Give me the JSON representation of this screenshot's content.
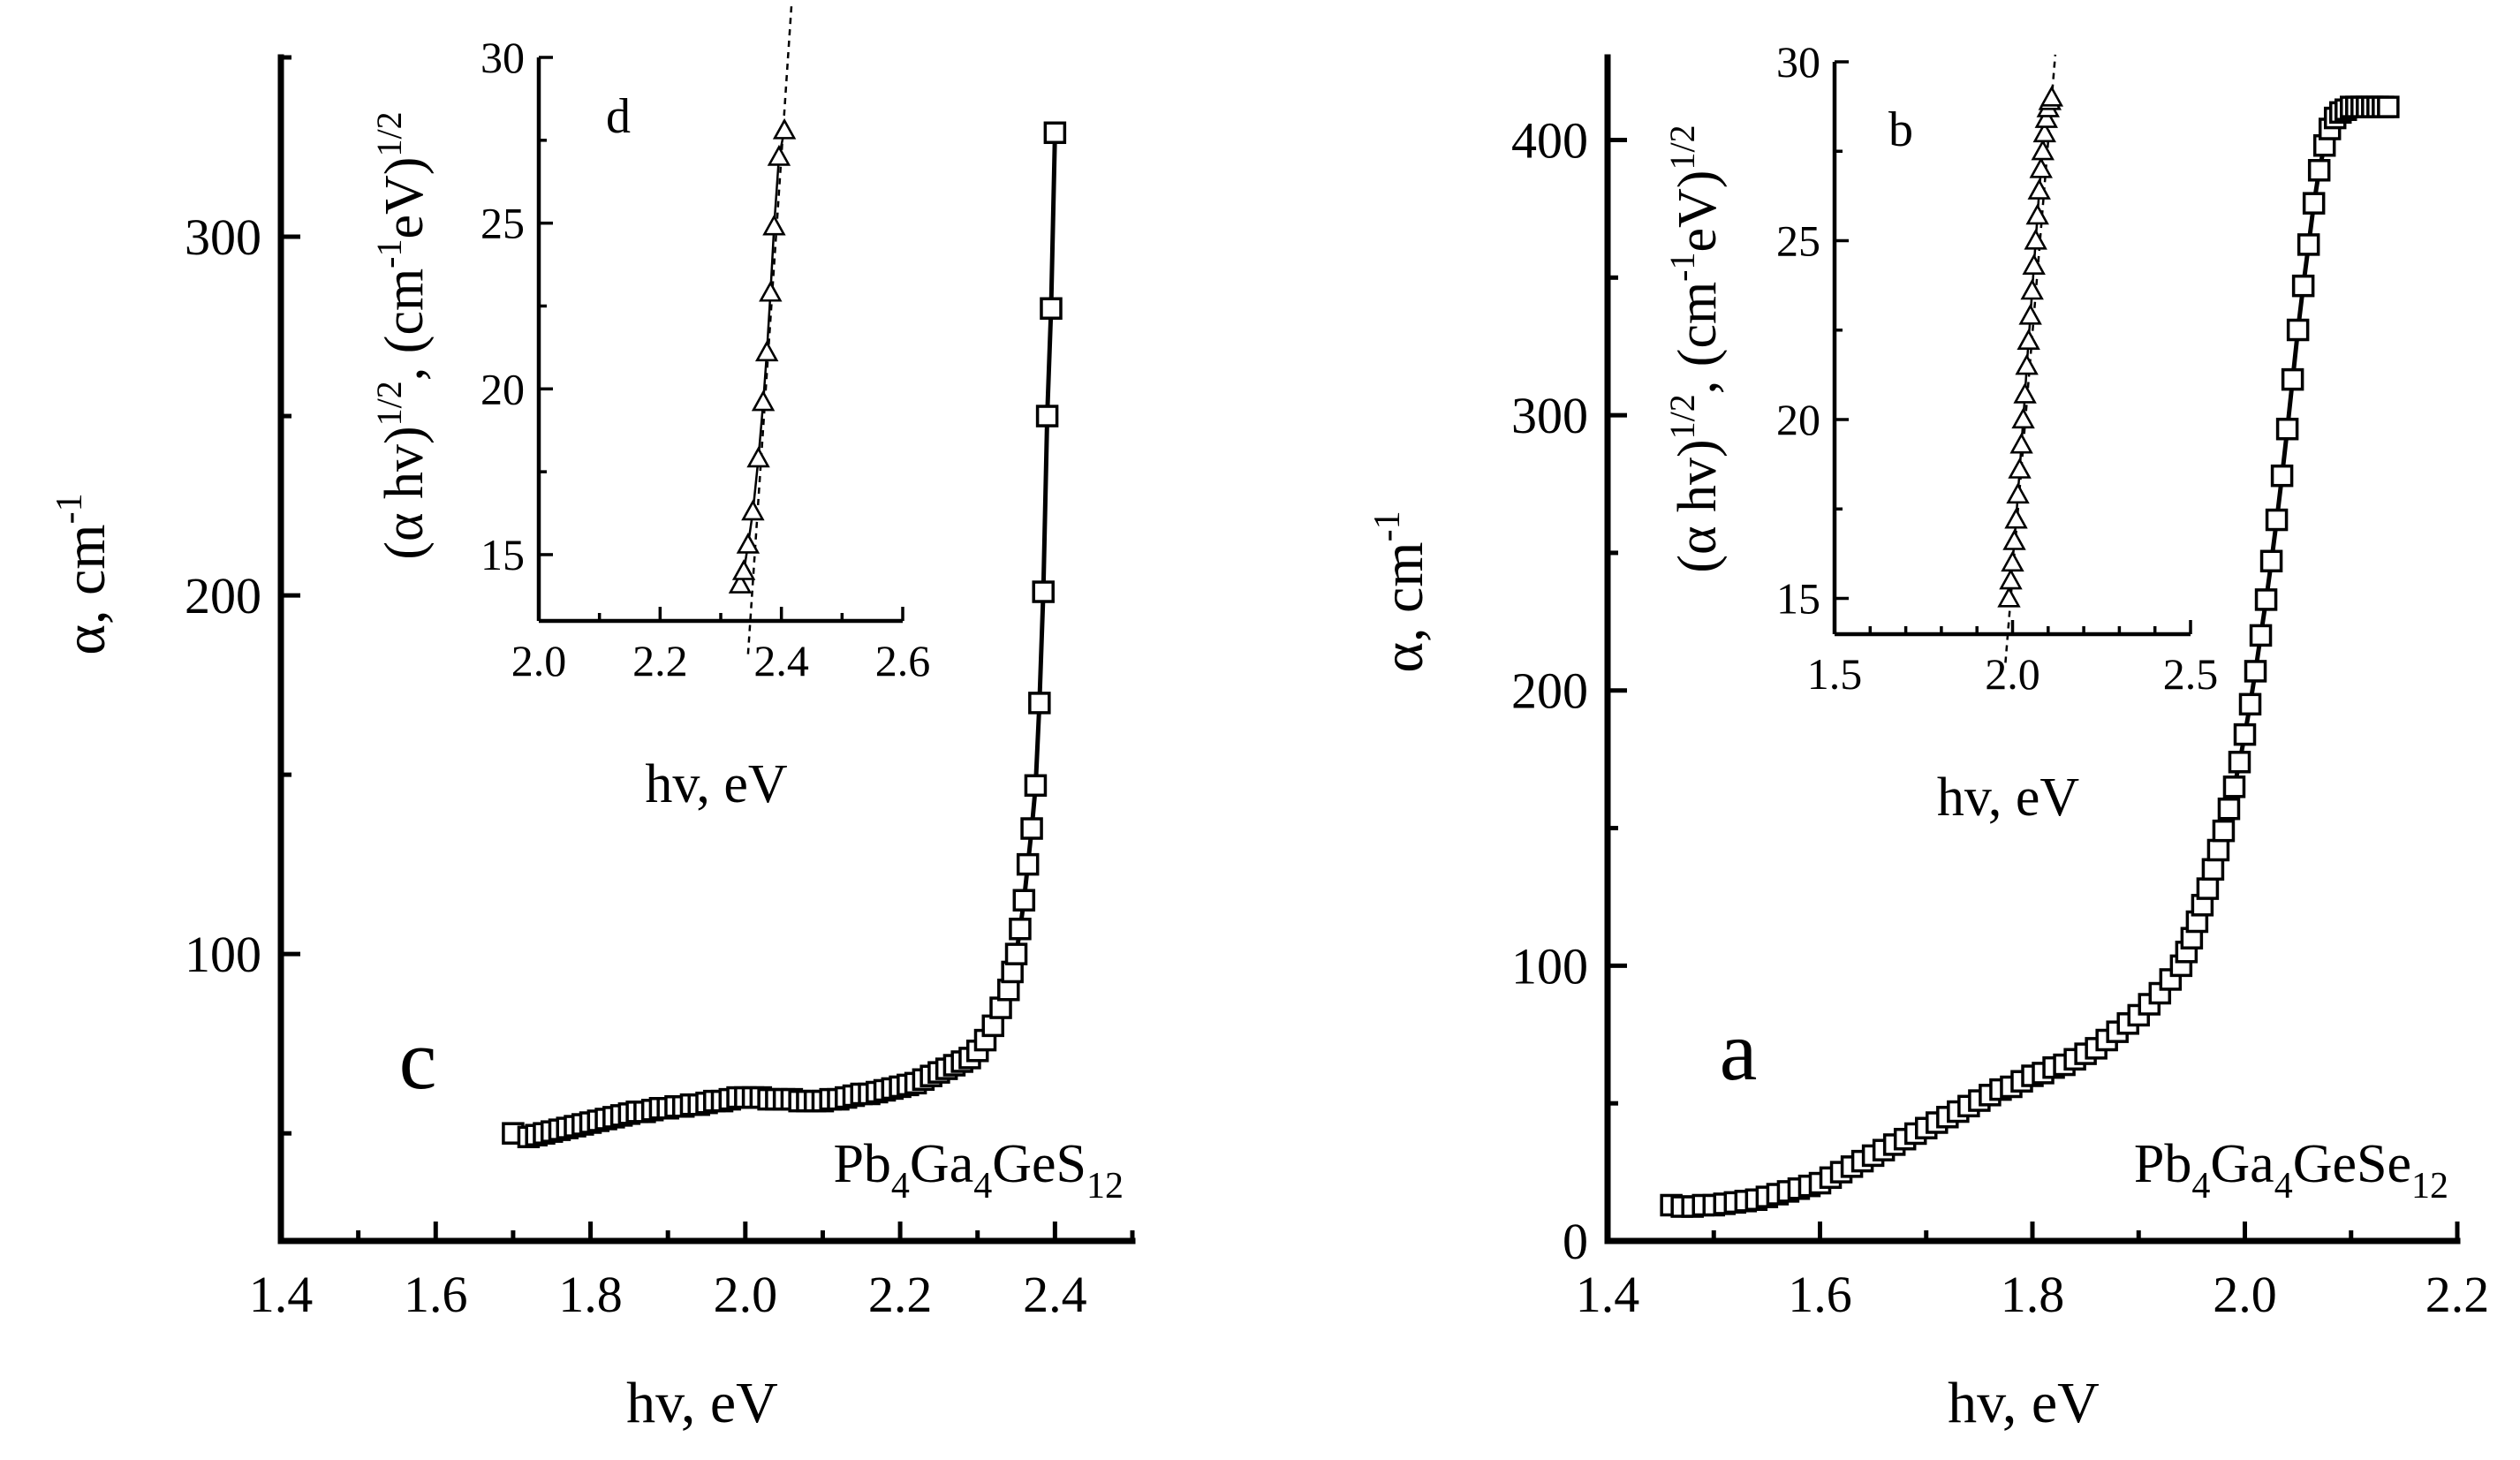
{
  "chart_data": [
    {
      "id": "c",
      "type": "scatter",
      "panel_letter": "c",
      "compound": {
        "base": "Pb",
        "parts": [
          [
            "Pb",
            "4"
          ],
          [
            "Ga",
            "4"
          ],
          [
            "GeS",
            "12"
          ]
        ]
      },
      "compound_text": "Pb4Ga4GeS12",
      "xlabel": "hv, eV",
      "ylabel": {
        "main": "α, cm",
        "sup": "-1"
      },
      "xlim": [
        1.4,
        2.5
      ],
      "ylim": [
        20,
        350
      ],
      "xticks": [
        1.4,
        1.6,
        1.8,
        2.0,
        2.2,
        2.4
      ],
      "xtick_labels": [
        "1.4",
        "1.6",
        "1.8",
        "2.0",
        "2.2",
        "2.4"
      ],
      "yticks": [
        100,
        200,
        300
      ],
      "ytick_labels": [
        "100",
        "200",
        "300"
      ],
      "marker": "square",
      "x": [
        1.7,
        1.72,
        1.73,
        1.74,
        1.75,
        1.76,
        1.77,
        1.78,
        1.79,
        1.8,
        1.81,
        1.82,
        1.83,
        1.84,
        1.85,
        1.86,
        1.87,
        1.88,
        1.89,
        1.9,
        1.91,
        1.92,
        1.93,
        1.94,
        1.95,
        1.96,
        1.97,
        1.98,
        1.99,
        2.0,
        2.01,
        2.02,
        2.03,
        2.04,
        2.05,
        2.06,
        2.07,
        2.08,
        2.09,
        2.1,
        2.11,
        2.12,
        2.13,
        2.14,
        2.15,
        2.16,
        2.17,
        2.18,
        2.19,
        2.2,
        2.21,
        2.22,
        2.23,
        2.24,
        2.25,
        2.26,
        2.27,
        2.28,
        2.29,
        2.3,
        2.31,
        2.32,
        2.33,
        2.34,
        2.345,
        2.35,
        2.355,
        2.36,
        2.365,
        2.37,
        2.375,
        2.38,
        2.385,
        2.39,
        2.395,
        2.4
      ],
      "y": [
        50,
        49,
        49.5,
        50,
        50.5,
        51,
        51.5,
        52,
        52.5,
        53,
        53.5,
        54,
        54.5,
        55,
        55.5,
        56,
        56,
        56.5,
        57,
        57,
        57.5,
        57.5,
        58,
        58,
        58.5,
        59,
        59,
        59.5,
        60,
        60,
        60,
        60,
        59.5,
        59.5,
        59.5,
        59.5,
        59,
        59,
        59,
        59,
        59.5,
        59.5,
        60,
        60.5,
        61,
        61,
        61.5,
        62,
        62.5,
        63,
        63.5,
        64,
        65,
        66,
        67,
        68,
        69,
        70,
        71,
        73,
        76,
        80,
        85,
        90,
        95,
        100,
        107,
        115,
        125,
        135,
        147,
        170,
        201,
        250,
        280,
        329
      ]
    },
    {
      "id": "d",
      "type": "scatter",
      "inset_of": "c",
      "panel_letter": "d",
      "xlabel": "hv, eV",
      "ylabel": {
        "open": "(α hv)",
        "sup1": "1/2",
        "mid": ", (cm",
        "sup2": "-1",
        "mid2": "eV)",
        "sup3": "1/2"
      },
      "ylabel_text": "(α hv)1/2, (cm-1eV)1/2",
      "xlim": [
        2.0,
        2.6
      ],
      "ylim": [
        13,
        30
      ],
      "xticks": [
        2.0,
        2.2,
        2.4,
        2.6
      ],
      "xtick_labels": [
        "2.0",
        "2.2",
        "2.4",
        "2.6"
      ],
      "yticks": [
        15,
        20,
        25,
        30
      ],
      "ytick_labels": [
        "15",
        "20",
        "25",
        "30"
      ],
      "marker": "triangle",
      "x": [
        2.332,
        2.338,
        2.345,
        2.353,
        2.362,
        2.37,
        2.376,
        2.382,
        2.388,
        2.396,
        2.405
      ],
      "y": [
        14.1,
        14.5,
        15.3,
        16.3,
        17.9,
        19.6,
        21.1,
        22.9,
        24.9,
        27.0,
        27.8
      ],
      "fit_line": {
        "x": [
          2.345,
          2.42
        ],
        "y": [
          12.0,
          32.5
        ]
      }
    },
    {
      "id": "a",
      "type": "scatter",
      "panel_letter": "a",
      "compound": {
        "base": "Pb",
        "parts": [
          [
            "Pb",
            "4"
          ],
          [
            "Ga",
            "4"
          ],
          [
            "GeSe",
            "12"
          ]
        ]
      },
      "compound_text": "Pb4Ga4GeSe12",
      "xlabel": "hv, eV",
      "ylabel": {
        "main": "α, cm",
        "sup": "-1"
      },
      "xlim": [
        1.4,
        2.2
      ],
      "ylim": [
        0,
        430
      ],
      "xticks": [
        1.4,
        1.6,
        1.8,
        2.0,
        2.2
      ],
      "xtick_labels": [
        "1.4",
        "1.6",
        "1.8",
        "2.0",
        "2.2"
      ],
      "yticks": [
        0,
        100,
        200,
        300,
        400
      ],
      "ytick_labels": [
        "0",
        "100",
        "200",
        "300",
        "400"
      ],
      "marker": "square",
      "x": [
        1.46,
        1.47,
        1.48,
        1.49,
        1.5,
        1.51,
        1.52,
        1.53,
        1.54,
        1.55,
        1.56,
        1.57,
        1.58,
        1.59,
        1.6,
        1.61,
        1.62,
        1.63,
        1.64,
        1.65,
        1.66,
        1.67,
        1.68,
        1.69,
        1.7,
        1.71,
        1.72,
        1.73,
        1.74,
        1.75,
        1.76,
        1.77,
        1.78,
        1.79,
        1.8,
        1.81,
        1.82,
        1.83,
        1.84,
        1.85,
        1.86,
        1.87,
        1.88,
        1.89,
        1.9,
        1.91,
        1.92,
        1.93,
        1.94,
        1.945,
        1.95,
        1.955,
        1.96,
        1.965,
        1.97,
        1.975,
        1.98,
        1.985,
        1.99,
        1.995,
        2.0,
        2.005,
        2.01,
        2.015,
        2.02,
        2.025,
        2.03,
        2.035,
        2.04,
        2.045,
        2.05,
        2.055,
        2.06,
        2.065,
        2.07,
        2.075,
        2.08,
        2.085,
        2.09,
        2.095,
        2.1,
        2.105,
        2.11,
        2.115,
        2.12,
        2.125,
        2.13,
        2.135
      ],
      "y": [
        13,
        12.5,
        12.5,
        13,
        13,
        13.5,
        14,
        14.5,
        15,
        16,
        17,
        18,
        19,
        20,
        21,
        23,
        25,
        27,
        29,
        31,
        33,
        35,
        37,
        39,
        41,
        43,
        45,
        47,
        49,
        51,
        53,
        55,
        56,
        58,
        60,
        61,
        63,
        64,
        66,
        68,
        70,
        73,
        76,
        79,
        82,
        86,
        90,
        95,
        100,
        105,
        110,
        116,
        122,
        128,
        135,
        142,
        149,
        157,
        165,
        174,
        184,
        195,
        207,
        220,
        233,
        247,
        262,
        278,
        295,
        313,
        331,
        347,
        362,
        377,
        389,
        398,
        404,
        408,
        410,
        411,
        412,
        412,
        412,
        412,
        412,
        412,
        412,
        412
      ]
    },
    {
      "id": "b",
      "type": "scatter",
      "inset_of": "a",
      "panel_letter": "b",
      "xlabel": "hv, eV",
      "ylabel": {
        "open": "(α hv)",
        "sup1": "1/2",
        "mid": ", (cm",
        "sup2": "-1",
        "mid2": "eV)",
        "sup3": "1/2"
      },
      "ylabel_text": "(α hv)1/2, (cm-1eV)1/2",
      "xlim": [
        1.5,
        2.5
      ],
      "ylim": [
        14,
        30
      ],
      "xticks": [
        1.5,
        2.0,
        2.5
      ],
      "xtick_labels": [
        "1.5",
        "2.0",
        "2.5"
      ],
      "yticks": [
        15,
        20,
        25,
        30
      ],
      "ytick_labels": [
        "15",
        "20",
        "25",
        "30"
      ],
      "marker": "triangle",
      "x": [
        1.99,
        1.995,
        2.0,
        2.005,
        2.01,
        2.015,
        2.02,
        2.025,
        2.03,
        2.035,
        2.04,
        2.045,
        2.05,
        2.055,
        2.06,
        2.065,
        2.07,
        2.075,
        2.08,
        2.085,
        2.09,
        2.095,
        2.1,
        2.105,
        2.11
      ],
      "y": [
        15.0,
        15.5,
        16.0,
        16.6,
        17.2,
        17.9,
        18.6,
        19.3,
        20.0,
        20.7,
        21.5,
        22.2,
        22.9,
        23.6,
        24.3,
        25.0,
        25.7,
        26.4,
        27.0,
        27.5,
        28.0,
        28.4,
        28.7,
        28.9,
        29.0
      ],
      "fit_line": {
        "x": [
          1.98,
          2.12
        ],
        "y": [
          13.2,
          30.2
        ]
      }
    }
  ]
}
